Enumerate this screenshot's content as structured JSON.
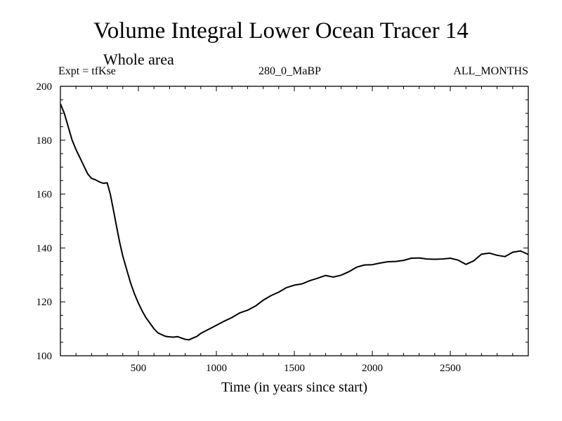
{
  "chart_data": {
    "type": "line",
    "title": "Volume Integral Lower Ocean Tracer 14",
    "subtitle": "Whole area",
    "experiment": "Expt = tfKse",
    "run_label": "280_0_MaBP",
    "period_label": "ALL_MONTHS",
    "xlabel": "Time (in years since start)",
    "ylabel": "",
    "xlim": [
      0,
      3000
    ],
    "ylim": [
      100,
      200
    ],
    "xticks": [
      500,
      1000,
      1500,
      2000,
      2500
    ],
    "yticks": [
      100,
      120,
      140,
      160,
      180,
      200
    ],
    "series": [
      {
        "name": "Lower Ocean Tracer 14",
        "x": [
          0,
          25,
          50,
          75,
          100,
          125,
          150,
          175,
          200,
          225,
          250,
          275,
          300,
          320,
          340,
          360,
          380,
          400,
          425,
          450,
          475,
          500,
          525,
          550,
          575,
          600,
          625,
          650,
          675,
          700,
          725,
          750,
          775,
          800,
          825,
          850,
          875,
          900,
          950,
          1000,
          1050,
          1100,
          1150,
          1200,
          1250,
          1300,
          1350,
          1400,
          1450,
          1500,
          1550,
          1600,
          1650,
          1700,
          1750,
          1800,
          1850,
          1900,
          1950,
          2000,
          2050,
          2100,
          2150,
          2200,
          2250,
          2300,
          2350,
          2400,
          2450,
          2500,
          2550,
          2600,
          2650,
          2700,
          2750,
          2800,
          2850,
          2900,
          2950,
          3000
        ],
        "values": [
          193.5,
          190,
          185,
          180,
          176.5,
          173.5,
          170.5,
          167.5,
          165.8,
          165.3,
          164.5,
          164,
          164.2,
          160,
          154,
          148,
          142,
          137,
          132,
          127,
          123,
          119.5,
          116.5,
          114,
          112,
          110,
          108.5,
          107.8,
          107.2,
          107,
          106.9,
          107.1,
          106.6,
          106.1,
          105.9,
          106.6,
          107.2,
          108.3,
          109.8,
          111.3,
          112.8,
          114.2,
          115.9,
          116.9,
          118.4,
          120.6,
          122.3,
          123.6,
          125.3,
          126.2,
          126.7,
          127.9,
          128.8,
          129.8,
          129.2,
          129.9,
          131.2,
          132.9,
          133.7,
          133.8,
          134.4,
          134.9,
          135,
          135.4,
          136.2,
          136.3,
          135.9,
          135.8,
          135.9,
          136.2,
          135.5,
          133.9,
          135.2,
          137.7,
          138.1,
          137.3,
          136.8,
          138.4,
          138.9,
          137.6
        ]
      }
    ]
  }
}
